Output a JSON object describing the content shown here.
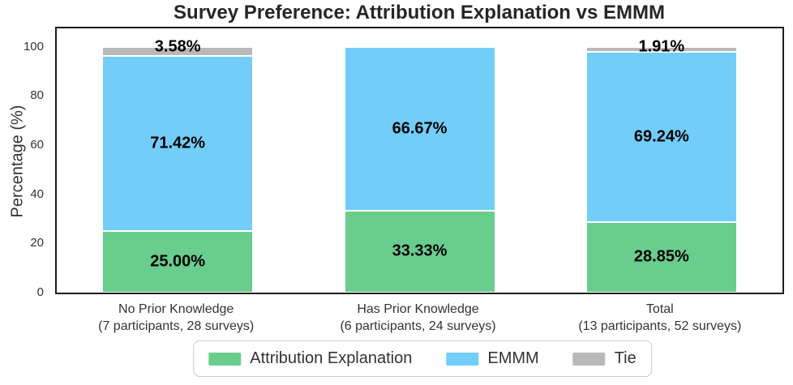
{
  "chart_data": {
    "type": "bar",
    "stacked": true,
    "title": "Survey Preference: Attribution Explanation vs EMMM",
    "ylabel": "Percentage (%)",
    "xlabel": "",
    "ylim": [
      0,
      100
    ],
    "yticks": [
      0,
      20,
      40,
      60,
      80,
      100
    ],
    "grid": false,
    "legend_position": "bottom",
    "value_label_suffix": "%",
    "categories": [
      {
        "label": "No Prior Knowledge",
        "sub": "(7 participants, 28 surveys)"
      },
      {
        "label": "Has Prior Knowledge",
        "sub": "(6 participants, 24 surveys)"
      },
      {
        "label": "Total",
        "sub": "(13 participants, 52 surveys)"
      }
    ],
    "series": [
      {
        "name": "Attribution Explanation",
        "color": "#69cd8e",
        "values": [
          25.0,
          33.33,
          28.85
        ]
      },
      {
        "name": "EMMM",
        "color": "#72cdf8",
        "values": [
          71.42,
          66.67,
          69.24
        ]
      },
      {
        "name": "Tie",
        "color": "#b9b9b9",
        "values": [
          3.58,
          0.0,
          1.91
        ]
      }
    ]
  }
}
